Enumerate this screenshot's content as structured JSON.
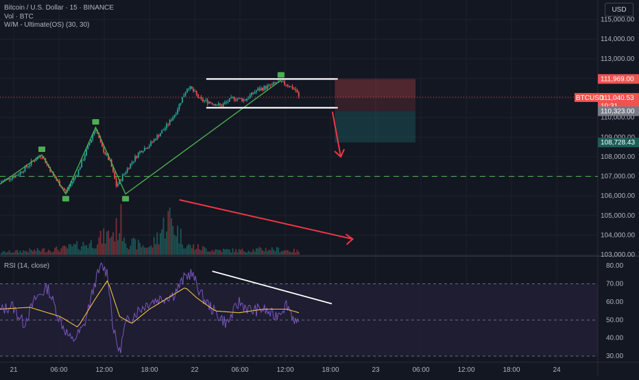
{
  "header": {
    "symbol_title": "Bitcoin / U.S. Dollar · 15 · BINANCE",
    "volume_label": "Vol · BTC",
    "indicator_label": "W/M - Ultimate(OS) (30, 30)",
    "currency_button": "USD"
  },
  "rsi": {
    "label": "RSI (14, close)"
  },
  "tags": {
    "symbol": "BTCUSD",
    "countdown": "10:31",
    "last_price": "111,040.53",
    "upper_level": "111,969.00",
    "lower_level": "110,323.00",
    "target_level": "108,728.43"
  },
  "colors": {
    "background": "#131722",
    "up": "#26a69a",
    "down": "#ef5350",
    "rsi_line": "#7e57c2",
    "rsi_ma": "#f4c542",
    "drawing_white": "#ffffff",
    "drawing_green": "#4caf50",
    "drawing_red": "#f23645"
  },
  "chart_data": [
    {
      "type": "candlestick",
      "title": "Bitcoin / U.S. Dollar · 15 · BINANCE",
      "x_axis_ticks": [
        "21",
        "06:00",
        "12:00",
        "18:00",
        "22",
        "06:00",
        "12:00",
        "18:00",
        "23",
        "06:00",
        "12:00",
        "18:00",
        "24"
      ],
      "y_axis_ticks": [
        103000,
        104000,
        105000,
        106000,
        107000,
        108000,
        109000,
        110000,
        111000,
        112000,
        113000,
        114000,
        115000
      ],
      "ylim": [
        103000,
        116000
      ],
      "last_price": 111040.53,
      "horizontal_level": 107000,
      "rectangle_top": 111969.0,
      "rectangle_bottom": 110323.0,
      "target": 108728.43,
      "range_high": 111969,
      "range_low": 110500,
      "swing_points": [
        {
          "t": 0,
          "price": 106600
        },
        {
          "t": 0.07,
          "price": 108100
        },
        {
          "t": 0.11,
          "price": 106100
        },
        {
          "t": 0.16,
          "price": 109500
        },
        {
          "t": 0.21,
          "price": 106100
        },
        {
          "t": 0.47,
          "price": 111900
        }
      ],
      "price_path": [
        [
          0,
          106700
        ],
        [
          0.03,
          107100
        ],
        [
          0.06,
          107900
        ],
        [
          0.07,
          108100
        ],
        [
          0.09,
          107000
        ],
        [
          0.11,
          106200
        ],
        [
          0.13,
          107200
        ],
        [
          0.15,
          108700
        ],
        [
          0.16,
          109500
        ],
        [
          0.17,
          108500
        ],
        [
          0.185,
          107700
        ],
        [
          0.195,
          106500
        ],
        [
          0.205,
          107000
        ],
        [
          0.22,
          107700
        ],
        [
          0.235,
          108300
        ],
        [
          0.25,
          108600
        ],
        [
          0.265,
          109100
        ],
        [
          0.28,
          109600
        ],
        [
          0.295,
          110300
        ],
        [
          0.305,
          111000
        ],
        [
          0.315,
          111600
        ],
        [
          0.325,
          111300
        ],
        [
          0.335,
          110900
        ],
        [
          0.35,
          110800
        ],
        [
          0.37,
          110600
        ],
        [
          0.39,
          111000
        ],
        [
          0.41,
          110900
        ],
        [
          0.43,
          111400
        ],
        [
          0.45,
          111600
        ],
        [
          0.465,
          111800
        ],
        [
          0.48,
          111700
        ],
        [
          0.495,
          111400
        ],
        [
          0.5,
          111040
        ]
      ],
      "volume_ylim": [
        0,
        100
      ],
      "volume_profile": [
        [
          0,
          6
        ],
        [
          0.05,
          10
        ],
        [
          0.1,
          14
        ],
        [
          0.15,
          28
        ],
        [
          0.19,
          55
        ],
        [
          0.2,
          80
        ],
        [
          0.21,
          30
        ],
        [
          0.25,
          18
        ],
        [
          0.28,
          90
        ],
        [
          0.31,
          22
        ],
        [
          0.35,
          12
        ],
        [
          0.4,
          10
        ],
        [
          0.45,
          14
        ],
        [
          0.5,
          8
        ]
      ]
    },
    {
      "type": "line",
      "title": "RSI (14, close)",
      "y_axis_ticks": [
        30,
        40,
        50,
        60,
        70,
        80
      ],
      "ylim": [
        27,
        85
      ],
      "bands": [
        30,
        50,
        70
      ],
      "rsi_path": [
        [
          0,
          55
        ],
        [
          0.02,
          58
        ],
        [
          0.04,
          48
        ],
        [
          0.06,
          62
        ],
        [
          0.08,
          68
        ],
        [
          0.1,
          50
        ],
        [
          0.12,
          38
        ],
        [
          0.14,
          46
        ],
        [
          0.16,
          72
        ],
        [
          0.17,
          80
        ],
        [
          0.18,
          76
        ],
        [
          0.19,
          44
        ],
        [
          0.2,
          32
        ],
        [
          0.21,
          48
        ],
        [
          0.23,
          55
        ],
        [
          0.25,
          60
        ],
        [
          0.27,
          62
        ],
        [
          0.29,
          64
        ],
        [
          0.31,
          74
        ],
        [
          0.32,
          76
        ],
        [
          0.34,
          62
        ],
        [
          0.36,
          54
        ],
        [
          0.38,
          48
        ],
        [
          0.4,
          60
        ],
        [
          0.42,
          55
        ],
        [
          0.44,
          56
        ],
        [
          0.46,
          52
        ],
        [
          0.48,
          59
        ],
        [
          0.49,
          52
        ],
        [
          0.5,
          46
        ]
      ],
      "ma_path": [
        [
          0,
          56
        ],
        [
          0.05,
          57
        ],
        [
          0.1,
          52
        ],
        [
          0.13,
          46
        ],
        [
          0.16,
          62
        ],
        [
          0.18,
          72
        ],
        [
          0.2,
          52
        ],
        [
          0.22,
          48
        ],
        [
          0.25,
          56
        ],
        [
          0.28,
          62
        ],
        [
          0.31,
          68
        ],
        [
          0.33,
          62
        ],
        [
          0.36,
          55
        ],
        [
          0.4,
          54
        ],
        [
          0.44,
          56
        ],
        [
          0.48,
          56
        ],
        [
          0.5,
          54
        ]
      ]
    }
  ]
}
